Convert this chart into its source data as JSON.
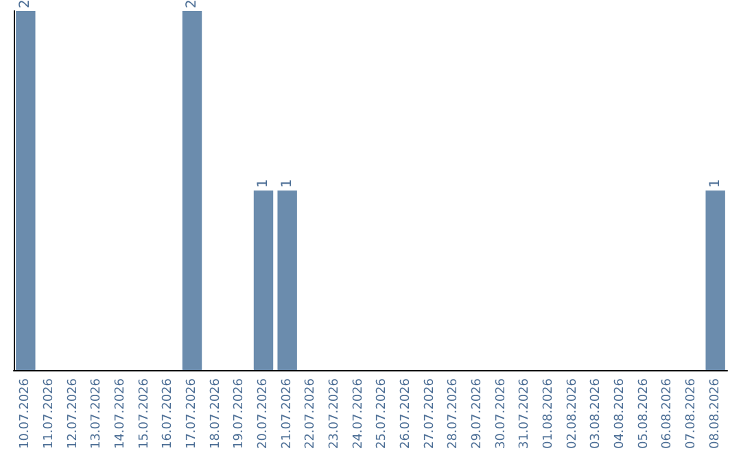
{
  "chart_data": {
    "type": "bar",
    "categories": [
      "10.07.2026",
      "11.07.2026",
      "12.07.2026",
      "13.07.2026",
      "14.07.2026",
      "15.07.2026",
      "16.07.2026",
      "17.07.2026",
      "18.07.2026",
      "19.07.2026",
      "20.07.2026",
      "21.07.2026",
      "22.07.2026",
      "23.07.2026",
      "24.07.2026",
      "25.07.2026",
      "26.07.2026",
      "27.07.2026",
      "28.07.2026",
      "29.07.2026",
      "30.07.2026",
      "31.07.2026",
      "01.08.2026",
      "02.08.2026",
      "03.08.2026",
      "04.08.2026",
      "05.08.2026",
      "06.08.2026",
      "07.08.2026",
      "08.08.2026"
    ],
    "values": [
      2,
      0,
      0,
      0,
      0,
      0,
      0,
      2,
      0,
      0,
      1,
      1,
      0,
      0,
      0,
      0,
      0,
      0,
      0,
      0,
      0,
      0,
      0,
      0,
      0,
      0,
      0,
      0,
      0,
      1
    ],
    "value_labels": [
      "2",
      null,
      null,
      null,
      null,
      null,
      null,
      "2",
      null,
      null,
      "1",
      "1",
      null,
      null,
      null,
      null,
      null,
      null,
      null,
      null,
      null,
      null,
      null,
      null,
      null,
      null,
      null,
      null,
      null,
      "1"
    ],
    "color": "#6b8cad",
    "grid": false,
    "tick_labels": "x"
  }
}
